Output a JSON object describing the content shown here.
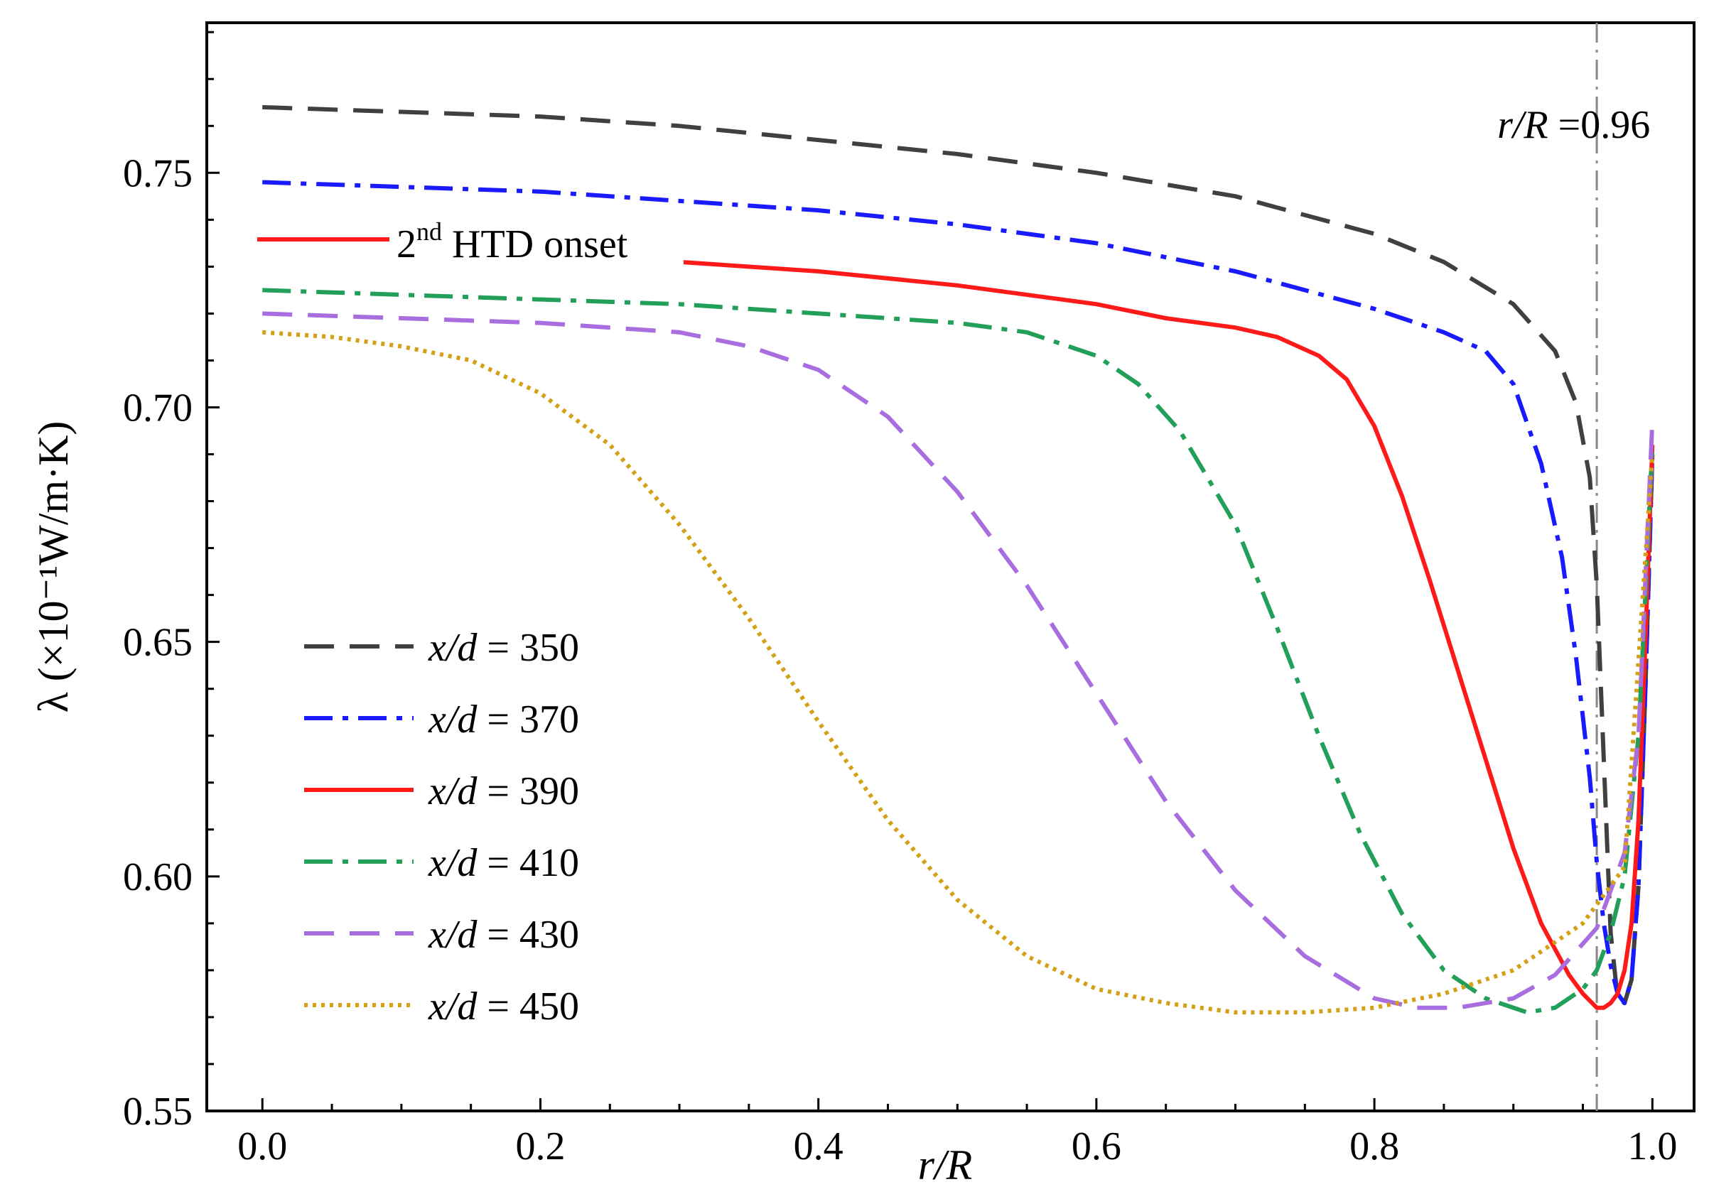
{
  "chart_data": {
    "type": "line",
    "xlabel": "r/R",
    "ylabel": "λ (×10⁻¹W/m·K)",
    "xlim": [
      -0.04,
      1.03
    ],
    "ylim": [
      0.55,
      0.782
    ],
    "xticks": [
      "0.0",
      "0.2",
      "0.4",
      "0.6",
      "0.8",
      "1.0"
    ],
    "yticks": [
      "0.55",
      "0.60",
      "0.65",
      "0.70",
      "0.75"
    ],
    "reference_line": {
      "x": 0.96,
      "label": "r/R =0.96"
    },
    "annotation": {
      "text": "2nd HTD onset",
      "series": "x/d = 390"
    },
    "legend_position": "lower-left",
    "series": [
      {
        "name": "x/d = 350",
        "color": "#404040",
        "dash": "dashed",
        "x": [
          0.0,
          0.1,
          0.2,
          0.3,
          0.4,
          0.5,
          0.6,
          0.7,
          0.8,
          0.85,
          0.9,
          0.93,
          0.945,
          0.955,
          0.96,
          0.965,
          0.97,
          0.975,
          0.98,
          0.985,
          0.99,
          0.995,
          1.0
        ],
        "y": [
          0.764,
          0.763,
          0.762,
          0.76,
          0.757,
          0.754,
          0.75,
          0.745,
          0.737,
          0.731,
          0.722,
          0.712,
          0.701,
          0.685,
          0.662,
          0.625,
          0.588,
          0.574,
          0.573,
          0.578,
          0.598,
          0.64,
          0.69
        ]
      },
      {
        "name": "x/d = 370",
        "color": "#1a1aff",
        "dash": "dashdot",
        "x": [
          0.0,
          0.1,
          0.2,
          0.3,
          0.4,
          0.5,
          0.6,
          0.7,
          0.8,
          0.85,
          0.88,
          0.9,
          0.92,
          0.935,
          0.945,
          0.955,
          0.96,
          0.965,
          0.97,
          0.975,
          0.98,
          0.985,
          0.99,
          0.995,
          1.0
        ],
        "y": [
          0.748,
          0.747,
          0.746,
          0.744,
          0.742,
          0.739,
          0.735,
          0.729,
          0.721,
          0.716,
          0.712,
          0.705,
          0.688,
          0.668,
          0.647,
          0.621,
          0.603,
          0.59,
          0.581,
          0.575,
          0.573,
          0.578,
          0.598,
          0.64,
          0.69
        ]
      },
      {
        "name": "x/d = 390",
        "color": "#ff1a1a",
        "dash": "solid",
        "x": [
          0.3,
          0.4,
          0.5,
          0.6,
          0.65,
          0.7,
          0.73,
          0.76,
          0.78,
          0.8,
          0.82,
          0.84,
          0.86,
          0.88,
          0.9,
          0.92,
          0.94,
          0.95,
          0.96,
          0.965,
          0.97,
          0.975,
          0.98,
          0.985,
          0.99,
          0.995,
          1.0
        ],
        "y": [
          0.731,
          0.729,
          0.726,
          0.722,
          0.719,
          0.717,
          0.715,
          0.711,
          0.706,
          0.696,
          0.681,
          0.663,
          0.644,
          0.625,
          0.606,
          0.59,
          0.579,
          0.575,
          0.572,
          0.572,
          0.573,
          0.575,
          0.58,
          0.59,
          0.612,
          0.65,
          0.692
        ]
      },
      {
        "name": "x/d = 410",
        "color": "#22a05a",
        "dash": "dashdot",
        "x": [
          0.0,
          0.1,
          0.2,
          0.3,
          0.4,
          0.5,
          0.55,
          0.6,
          0.63,
          0.66,
          0.7,
          0.73,
          0.76,
          0.79,
          0.82,
          0.85,
          0.88,
          0.91,
          0.93,
          0.95,
          0.96,
          0.97,
          0.98,
          0.99,
          0.995,
          1.0
        ],
        "y": [
          0.725,
          0.724,
          0.723,
          0.722,
          0.72,
          0.718,
          0.716,
          0.711,
          0.705,
          0.695,
          0.675,
          0.653,
          0.63,
          0.609,
          0.592,
          0.58,
          0.574,
          0.571,
          0.572,
          0.576,
          0.58,
          0.588,
          0.6,
          0.63,
          0.66,
          0.692
        ]
      },
      {
        "name": "x/d = 430",
        "color": "#a86ee0",
        "dash": "dashed",
        "x": [
          0.0,
          0.1,
          0.2,
          0.3,
          0.35,
          0.4,
          0.45,
          0.5,
          0.55,
          0.6,
          0.65,
          0.7,
          0.75,
          0.8,
          0.83,
          0.86,
          0.9,
          0.93,
          0.96,
          0.98,
          0.99,
          1.0
        ],
        "y": [
          0.72,
          0.719,
          0.718,
          0.716,
          0.713,
          0.708,
          0.698,
          0.682,
          0.662,
          0.639,
          0.616,
          0.597,
          0.583,
          0.574,
          0.572,
          0.572,
          0.574,
          0.579,
          0.589,
          0.605,
          0.63,
          0.697
        ]
      },
      {
        "name": "x/d = 450",
        "color": "#d4a017",
        "dash": "dotted",
        "x": [
          0.0,
          0.05,
          0.1,
          0.15,
          0.2,
          0.25,
          0.3,
          0.35,
          0.4,
          0.45,
          0.5,
          0.55,
          0.6,
          0.65,
          0.7,
          0.75,
          0.8,
          0.85,
          0.9,
          0.95,
          0.98,
          1.0
        ],
        "y": [
          0.716,
          0.715,
          0.713,
          0.71,
          0.703,
          0.692,
          0.675,
          0.655,
          0.633,
          0.612,
          0.595,
          0.583,
          0.576,
          0.573,
          0.571,
          0.571,
          0.572,
          0.575,
          0.58,
          0.59,
          0.602,
          0.69
        ]
      }
    ]
  }
}
